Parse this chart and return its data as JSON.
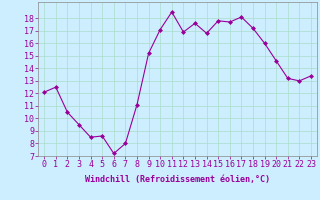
{
  "x": [
    0,
    1,
    2,
    3,
    4,
    5,
    6,
    7,
    8,
    9,
    10,
    11,
    12,
    13,
    14,
    15,
    16,
    17,
    18,
    19,
    20,
    21,
    22,
    23
  ],
  "y": [
    12.1,
    12.5,
    10.5,
    9.5,
    8.5,
    8.6,
    7.2,
    8.0,
    11.1,
    15.2,
    17.1,
    18.5,
    16.9,
    17.6,
    16.8,
    17.8,
    17.7,
    18.1,
    17.2,
    16.0,
    14.6,
    13.2,
    13.0,
    13.4
  ],
  "line_color": "#990099",
  "marker": "D",
  "marker_size": 2,
  "bg_color": "#cceeff",
  "grid_color": "#aaddcc",
  "xlabel": "Windchill (Refroidissement éolien,°C)",
  "ylim": [
    7,
    19
  ],
  "xlim": [
    -0.5,
    23.5
  ],
  "yticks": [
    7,
    8,
    9,
    10,
    11,
    12,
    13,
    14,
    15,
    16,
    17,
    18
  ],
  "xticks": [
    0,
    1,
    2,
    3,
    4,
    5,
    6,
    7,
    8,
    9,
    10,
    11,
    12,
    13,
    14,
    15,
    16,
    17,
    18,
    19,
    20,
    21,
    22,
    23
  ],
  "tick_label_color": "#990099",
  "xlabel_color": "#990099",
  "xlabel_fontsize": 6,
  "tick_fontsize": 6,
  "line_width": 0.8
}
